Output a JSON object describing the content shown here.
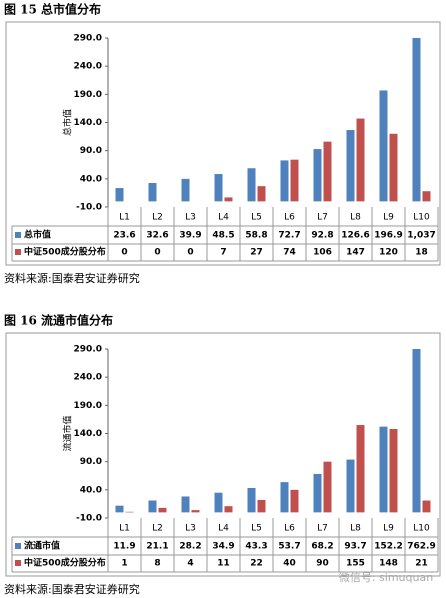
{
  "chart_data": [
    {
      "type": "bar",
      "title": "图 15 总市值分布",
      "y_label": "总市值",
      "note": "资料来源:国泰君安证券研究",
      "categories": [
        "L1",
        "L2",
        "L3",
        "L4",
        "L5",
        "L6",
        "L7",
        "L8",
        "L9",
        "L10"
      ],
      "series": [
        {
          "name": "总市值",
          "color": "#4f81bd",
          "values": [
            23.6,
            32.6,
            39.9,
            48.5,
            58.8,
            72.7,
            92.8,
            126.6,
            196.9,
            1037
          ],
          "value_labels": [
            "23.6",
            "32.6",
            "39.9",
            "48.5",
            "58.8",
            "72.7",
            "92.8",
            "126.6",
            "196.9",
            "1,037"
          ]
        },
        {
          "name": "中证500成分股分布",
          "color": "#c0504d",
          "values": [
            0,
            0,
            0,
            7,
            27,
            74,
            106,
            147,
            120,
            18
          ],
          "value_labels": [
            "0",
            "0",
            "0",
            "7",
            "27",
            "74",
            "106",
            "147",
            "120",
            "18"
          ]
        }
      ],
      "ylim": [
        -10,
        290
      ],
      "yticks": [
        {
          "value": -10,
          "label": "-10.0"
        },
        {
          "value": 40,
          "label": "40.0"
        },
        {
          "value": 90,
          "label": "90.0"
        },
        {
          "value": 140,
          "label": "140.0"
        },
        {
          "value": 190,
          "label": "190.0"
        },
        {
          "value": 240,
          "label": "240.0"
        },
        {
          "value": 290,
          "label": "290.0"
        }
      ],
      "grid": false
    },
    {
      "type": "bar",
      "title": "图 16 流通市值分布",
      "y_label": "流通市值",
      "note": "资料来源:国泰君安证券研究",
      "categories": [
        "L1",
        "L2",
        "L3",
        "L4",
        "L5",
        "L6",
        "L7",
        "L8",
        "L9",
        "L10"
      ],
      "series": [
        {
          "name": "流通市值",
          "color": "#4f81bd",
          "values": [
            11.9,
            21.1,
            28.2,
            34.9,
            43.3,
            53.7,
            68.2,
            93.7,
            152.2,
            762.9
          ],
          "value_labels": [
            "11.9",
            "21.1",
            "28.2",
            "34.9",
            "43.3",
            "53.7",
            "68.2",
            "93.7",
            "152.2",
            "762.9"
          ]
        },
        {
          "name": "中证500成分股分布",
          "color": "#c0504d",
          "values": [
            1,
            8,
            4,
            11,
            22,
            40,
            90,
            155,
            148,
            21
          ],
          "value_labels": [
            "1",
            "8",
            "4",
            "11",
            "22",
            "40",
            "90",
            "155",
            "148",
            "21"
          ]
        }
      ],
      "ylim": [
        -10,
        290
      ],
      "yticks": [
        {
          "value": -10,
          "label": "-10.0"
        },
        {
          "value": 40,
          "label": "40.0"
        },
        {
          "value": 90,
          "label": "90.0"
        },
        {
          "value": 140,
          "label": "140.0"
        },
        {
          "value": 190,
          "label": "190.0"
        },
        {
          "value": 240,
          "label": "240.0"
        },
        {
          "value": 290,
          "label": "290.0"
        }
      ],
      "grid": false
    }
  ],
  "watermark": "微信号: simuquan"
}
